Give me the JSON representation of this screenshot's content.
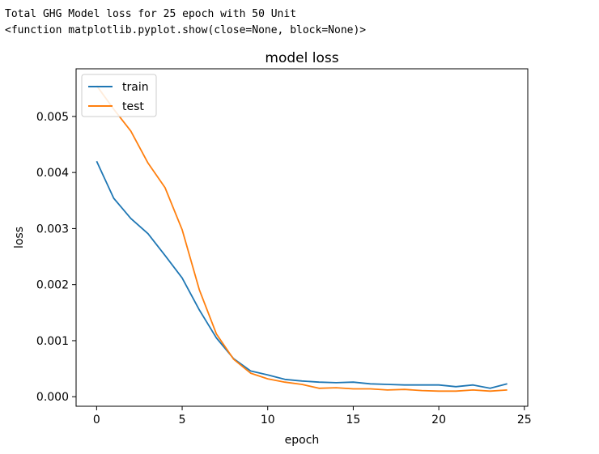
{
  "console": {
    "line1": "Total GHG Model loss for 25 epoch with 50 Unit",
    "line2": "<function matplotlib.pyplot.show(close=None, block=None)>"
  },
  "chart_data": {
    "type": "line",
    "title": "model loss",
    "xlabel": "epoch",
    "ylabel": "loss",
    "xlim": [
      -1.2,
      25.2
    ],
    "ylim": [
      -0.00017,
      0.00585
    ],
    "xticks": [
      0,
      5,
      10,
      15,
      20,
      25
    ],
    "xtick_labels": [
      "0",
      "5",
      "10",
      "15",
      "20",
      "25"
    ],
    "yticks": [
      0.0,
      0.001,
      0.002,
      0.003,
      0.004,
      0.005
    ],
    "ytick_labels": [
      "0.000",
      "0.001",
      "0.002",
      "0.003",
      "0.004",
      "0.005"
    ],
    "legend": "upper left",
    "grid": false,
    "x": [
      0,
      1,
      2,
      3,
      4,
      5,
      6,
      7,
      8,
      9,
      10,
      11,
      12,
      13,
      14,
      15,
      16,
      17,
      18,
      19,
      20,
      21,
      22,
      23,
      24
    ],
    "series": [
      {
        "name": "train",
        "color": "#1f77b4",
        "values": [
          0.0042,
          0.00354,
          0.00318,
          0.00291,
          0.00252,
          0.00212,
          0.00155,
          0.00105,
          0.00068,
          0.00046,
          0.00039,
          0.00031,
          0.00028,
          0.00026,
          0.00025,
          0.00026,
          0.00023,
          0.00022,
          0.00021,
          0.00021,
          0.00021,
          0.00018,
          0.00021,
          0.00015,
          0.00023
        ]
      },
      {
        "name": "test",
        "color": "#ff7f0e",
        "values": [
          0.00555,
          0.00513,
          0.00474,
          0.00417,
          0.00373,
          0.00298,
          0.00191,
          0.00112,
          0.00067,
          0.00042,
          0.00032,
          0.00026,
          0.00022,
          0.00015,
          0.00016,
          0.00014,
          0.00014,
          0.00012,
          0.00013,
          0.00011,
          0.0001,
          0.0001,
          0.00012,
          0.0001,
          0.00012
        ]
      }
    ]
  }
}
